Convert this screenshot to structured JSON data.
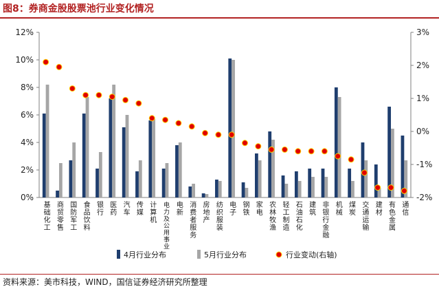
{
  "header": {
    "title": "图8：券商金股股票池行业变化情况"
  },
  "footer": {
    "source": "资料来源：美市科技，WIND，国信证券经济研究所整理"
  },
  "colors": {
    "apr": "#1f3e6e",
    "may": "#a6a6a6",
    "change": "#e00000",
    "change_edge": "#ffd200",
    "accent": "#b22222"
  },
  "chart_data": {
    "type": "bar",
    "categories": [
      "基础化工",
      "商贸零售",
      "国防军工",
      "食品饮料",
      "银行",
      "医药",
      "汽车",
      "传媒",
      "计算机",
      "电力及公用事业",
      "电新",
      "消费者服务",
      "房地产",
      "纺织服装",
      "电子",
      "钢铁",
      "家电",
      "农林牧渔",
      "轻工制造",
      "石油石化",
      "建筑",
      "非银行金融",
      "机械",
      "煤炭",
      "交通运输",
      "建材",
      "有色金属",
      "通信"
    ],
    "series": [
      {
        "name": "4月行业分布",
        "axis": "left",
        "values": [
          6.1,
          0.5,
          2.7,
          6.1,
          2.1,
          7.2,
          5.1,
          1.9,
          5.6,
          2.1,
          3.8,
          0.8,
          0.3,
          1.3,
          10.1,
          1.1,
          3.2,
          4.8,
          1.6,
          1.9,
          2.1,
          2.1,
          8.0,
          2.1,
          4.0,
          2.4,
          6.6,
          4.5
        ]
      },
      {
        "name": "5月行业分布",
        "axis": "left",
        "values": [
          8.2,
          2.5,
          4.0,
          7.3,
          3.3,
          8.2,
          6.0,
          2.7,
          5.7,
          2.5,
          4.0,
          1.0,
          0.25,
          1.2,
          10.0,
          0.7,
          2.7,
          4.2,
          1.0,
          1.2,
          1.5,
          1.5,
          7.3,
          1.2,
          2.7,
          0.7,
          5.0,
          2.7
        ]
      },
      {
        "name": "行业变动(右轴)",
        "axis": "right",
        "type": "scatter",
        "values": [
          2.1,
          1.95,
          1.3,
          1.1,
          1.1,
          1.05,
          0.95,
          0.85,
          0.4,
          0.35,
          0.25,
          0.15,
          -0.05,
          -0.1,
          -0.1,
          -0.35,
          -0.45,
          -0.55,
          -0.55,
          -0.6,
          -0.6,
          -0.6,
          -0.75,
          -0.85,
          -1.25,
          -1.7,
          -1.7,
          -1.8
        ]
      }
    ],
    "ylim": [
      0,
      12
    ],
    "y_ticks": [
      "0%",
      "2%",
      "4%",
      "6%",
      "8%",
      "10%",
      "12%"
    ],
    "y2lim": [
      -2,
      3
    ],
    "y2_ticks": [
      "-2%",
      "-1%",
      "0%",
      "1%",
      "2%",
      "3%"
    ],
    "grid": false,
    "legend_position": "bottom"
  }
}
